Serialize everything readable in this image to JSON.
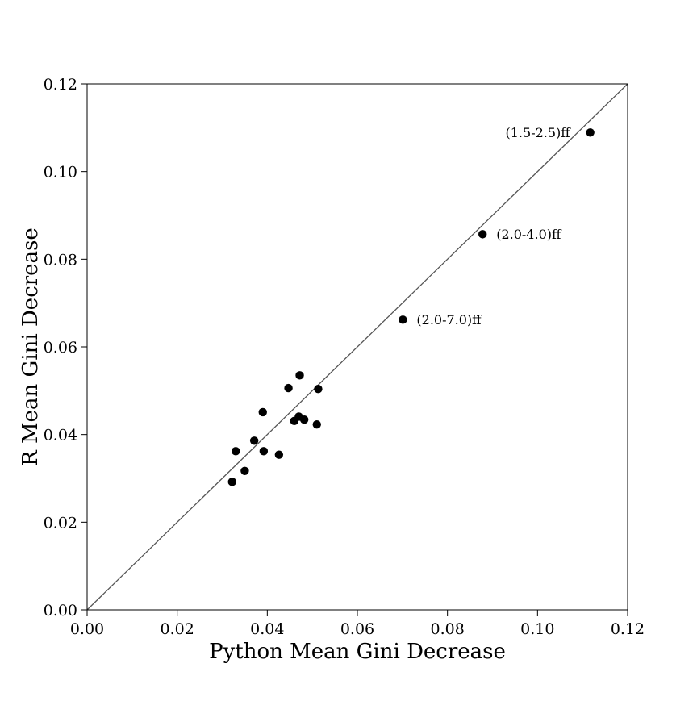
{
  "chart_data": {
    "type": "scatter",
    "title": "",
    "xlabel": "Python Mean Gini Decrease",
    "ylabel": "R Mean Gini Decrease",
    "xlim": [
      0,
      0.12
    ],
    "ylim": [
      0,
      0.12
    ],
    "xticks": [
      "0.00",
      "0.02",
      "0.04",
      "0.06",
      "0.08",
      "0.10",
      "0.12"
    ],
    "yticks": [
      "0.00",
      "0.02",
      "0.04",
      "0.06",
      "0.08",
      "0.10",
      "0.12"
    ],
    "grid": false,
    "reference_line": "y = x",
    "point_color": "#000000",
    "line_color": "#555555",
    "points": [
      {
        "x": 0.0322,
        "y": 0.0292,
        "label": ""
      },
      {
        "x": 0.033,
        "y": 0.0362,
        "label": ""
      },
      {
        "x": 0.035,
        "y": 0.0317,
        "label": ""
      },
      {
        "x": 0.0371,
        "y": 0.0386,
        "label": ""
      },
      {
        "x": 0.039,
        "y": 0.0451,
        "label": ""
      },
      {
        "x": 0.0392,
        "y": 0.0362,
        "label": ""
      },
      {
        "x": 0.0426,
        "y": 0.0354,
        "label": ""
      },
      {
        "x": 0.0447,
        "y": 0.0506,
        "label": ""
      },
      {
        "x": 0.046,
        "y": 0.0431,
        "label": ""
      },
      {
        "x": 0.047,
        "y": 0.0441,
        "label": ""
      },
      {
        "x": 0.0472,
        "y": 0.0535,
        "label": ""
      },
      {
        "x": 0.0482,
        "y": 0.0434,
        "label": ""
      },
      {
        "x": 0.051,
        "y": 0.0423,
        "label": ""
      },
      {
        "x": 0.0513,
        "y": 0.0504,
        "label": ""
      },
      {
        "x": 0.0701,
        "y": 0.0662,
        "label": "(2.0-7.0)ff",
        "label_side": "right"
      },
      {
        "x": 0.0878,
        "y": 0.0857,
        "label": "(2.0-4.0)ff",
        "label_side": "right"
      },
      {
        "x": 0.1117,
        "y": 0.1089,
        "label": "(1.5-2.5)ff",
        "label_side": "left"
      }
    ]
  }
}
